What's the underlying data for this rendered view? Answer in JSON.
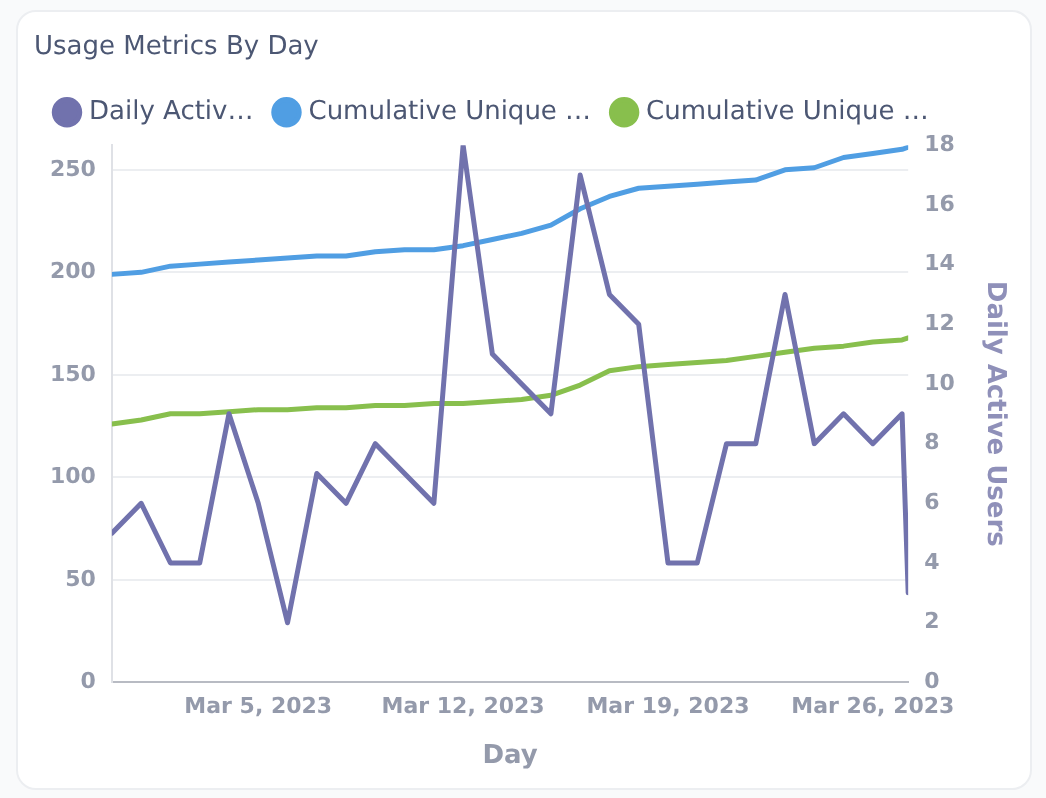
{
  "chart_data": {
    "type": "line",
    "title": "Usage Metrics By Day",
    "xlabel": "Day",
    "y2label": "Daily Active Users",
    "x": [
      "2023-02-28",
      "2023-03-01",
      "2023-03-02",
      "2023-03-03",
      "2023-03-04",
      "2023-03-05",
      "2023-03-06",
      "2023-03-07",
      "2023-03-08",
      "2023-03-09",
      "2023-03-10",
      "2023-03-11",
      "2023-03-12",
      "2023-03-13",
      "2023-03-14",
      "2023-03-15",
      "2023-03-16",
      "2023-03-17",
      "2023-03-18",
      "2023-03-19",
      "2023-03-20",
      "2023-03-21",
      "2023-03-22",
      "2023-03-23",
      "2023-03-24",
      "2023-03-25",
      "2023-03-26",
      "2023-03-27",
      "2023-03-27T05:00"
    ],
    "series": [
      {
        "name": "Daily Activ…",
        "color": "#7172ad",
        "axis": "y2",
        "values": [
          5,
          6,
          4,
          4,
          9,
          6,
          2,
          7,
          6,
          8,
          7,
          6,
          18,
          11,
          10,
          9,
          17,
          13,
          12,
          4,
          4,
          8,
          8,
          13,
          8,
          9,
          8,
          9,
          3
        ]
      },
      {
        "name": "Cumulative Unique …",
        "color": "#509ee3",
        "values": [
          199,
          200,
          203,
          204,
          205,
          206,
          207,
          208,
          208,
          210,
          211,
          211,
          213,
          216,
          219,
          223,
          231,
          237,
          241,
          242,
          243,
          244,
          245,
          250,
          251,
          256,
          258,
          260,
          261
        ]
      },
      {
        "name": "Cumulative Unique …",
        "color": "#88bf4d",
        "values": [
          126,
          128,
          131,
          131,
          132,
          133,
          133,
          134,
          134,
          135,
          135,
          136,
          136,
          137,
          138,
          140,
          145,
          152,
          154,
          155,
          156,
          157,
          159,
          161,
          163,
          164,
          166,
          167,
          168
        ]
      }
    ],
    "xlim": [
      "2023-02-28",
      "2023-03-27T05:00"
    ],
    "xticks": [
      {
        "value": "2023-03-05",
        "label": "Mar 5, 2023"
      },
      {
        "value": "2023-03-12",
        "label": "Mar 12, 2023"
      },
      {
        "value": "2023-03-19",
        "label": "Mar 19, 2023"
      },
      {
        "value": "2023-03-26",
        "label": "Mar 26, 2023"
      }
    ],
    "ylim": [
      0,
      262
    ],
    "yticks": [
      0,
      50,
      100,
      150,
      200,
      250
    ],
    "y2lim": [
      0,
      18
    ],
    "y2ticks": [
      0,
      2,
      4,
      6,
      8,
      10,
      12,
      14,
      16,
      18
    ],
    "grid": "y",
    "legend": "top left",
    "line_style": "solid"
  }
}
